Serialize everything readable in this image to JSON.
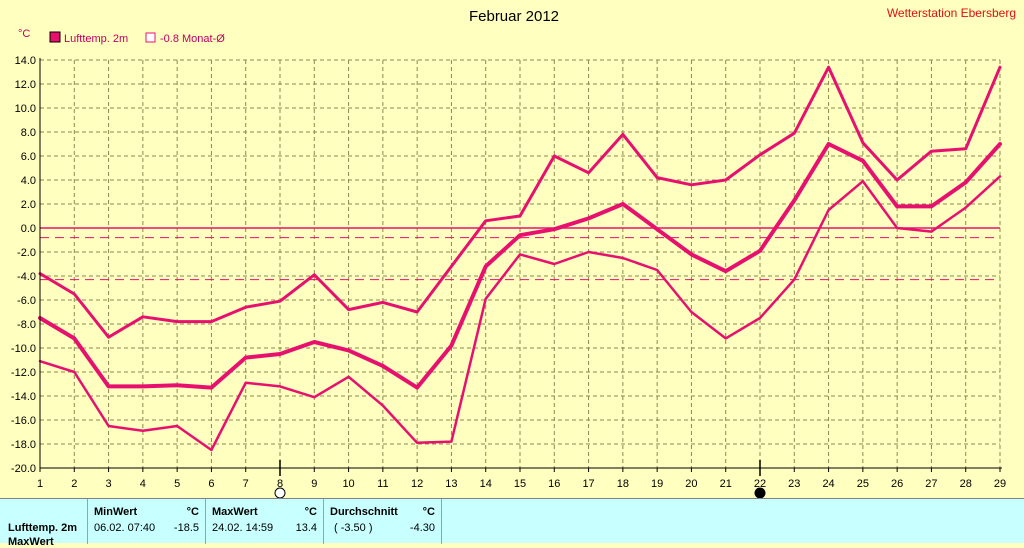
{
  "chart_data": {
    "type": "line",
    "title": "Februar 2012",
    "station": "Wetterstation Ebersberg",
    "ylabel": "°C",
    "ylim": [
      -20,
      14
    ],
    "yticks": [
      14.0,
      12.0,
      10.0,
      8.0,
      6.0,
      4.0,
      2.0,
      0.0,
      -2.0,
      -4.0,
      -6.0,
      -8.0,
      -10.0,
      -12.0,
      -14.0,
      -16.0,
      -18.0,
      -20.0
    ],
    "ytick_labels": [
      "14.0",
      "12.0",
      "10.0",
      "8.0",
      "6.0",
      "4.0",
      "2.0",
      "0.0",
      "-2.0",
      "-4.0",
      "-6.0",
      "-8.0",
      "-10.0",
      "-12.0",
      "-14.0",
      "-16.0",
      "-18.0",
      "-20.0"
    ],
    "x": [
      1,
      2,
      3,
      4,
      5,
      6,
      7,
      8,
      9,
      10,
      11,
      12,
      13,
      14,
      15,
      16,
      17,
      18,
      19,
      20,
      21,
      22,
      23,
      24,
      25,
      26,
      27,
      28,
      29
    ],
    "grid": true,
    "legend": [
      {
        "label": "Lufttemp. 2m",
        "color": "#e8106e",
        "style": "filled"
      },
      {
        "label": "-0.8 Monat-Ø",
        "color": "#e8106e",
        "style": "outline"
      }
    ],
    "series": [
      {
        "values": [
          -3.8,
          -5.5,
          -9.1,
          -7.4,
          -7.8,
          -7.8,
          -6.6,
          -6.1,
          -3.9,
          -6.8,
          -6.2,
          -7.0,
          -3.2,
          0.6,
          1.0,
          6.0,
          4.6,
          7.8,
          4.2,
          3.6,
          4.0,
          6.1,
          7.9,
          13.4,
          7.1,
          4.0,
          6.4,
          6.6,
          13.4
        ],
        "width": 3
      },
      {
        "values": [
          -7.5,
          -9.2,
          -13.2,
          -13.2,
          -13.1,
          -13.3,
          -10.8,
          -10.5,
          -9.5,
          -10.2,
          -11.5,
          -13.3,
          -9.8,
          -3.2,
          -0.6,
          -0.1,
          0.8,
          2.0,
          -0.1,
          -2.2,
          -3.6,
          -1.9,
          2.3,
          7.0,
          5.6,
          1.8,
          1.8,
          3.8,
          7.0
        ],
        "width": 4
      },
      {
        "values": [
          -11.1,
          -12.0,
          -16.5,
          -16.9,
          -16.5,
          -18.5,
          -12.9,
          -13.2,
          -14.1,
          -12.4,
          -14.8,
          -17.9,
          -17.8,
          -5.9,
          -2.2,
          -3.0,
          -2.0,
          -2.5,
          -3.5,
          -7.0,
          -9.2,
          -7.5,
          -4.3,
          1.5,
          3.9,
          0.0,
          -0.3,
          1.7,
          4.3
        ],
        "width": 2.5
      }
    ],
    "reference_lines": [
      {
        "value": 0.0,
        "style": "solid"
      },
      {
        "value": -0.8,
        "style": "dashed"
      },
      {
        "value": -4.3,
        "style": "dashed"
      }
    ],
    "moon_markers": [
      {
        "x": 8,
        "phase": "full"
      },
      {
        "x": 22,
        "phase": "new"
      }
    ]
  },
  "stats": {
    "row_label": "Lufttemp. 2m",
    "row2_label": "MaxWert",
    "min_header": "MinWert",
    "max_header": "MaxWert",
    "avg_header": "Durchschnitt",
    "unit": "°C",
    "min_date": "06.02.  07:40",
    "min_value": "-18.5",
    "max_date": "24.02.  14:59",
    "max_value": "13.4",
    "avg_paren": "( -3.50 )",
    "avg_value": "-4.30"
  },
  "colors": {
    "line": "#e8106e",
    "grid": "#8a8a50",
    "background": "#ffffc0",
    "panel": "#c8ffff",
    "station_text": "#e01010"
  }
}
